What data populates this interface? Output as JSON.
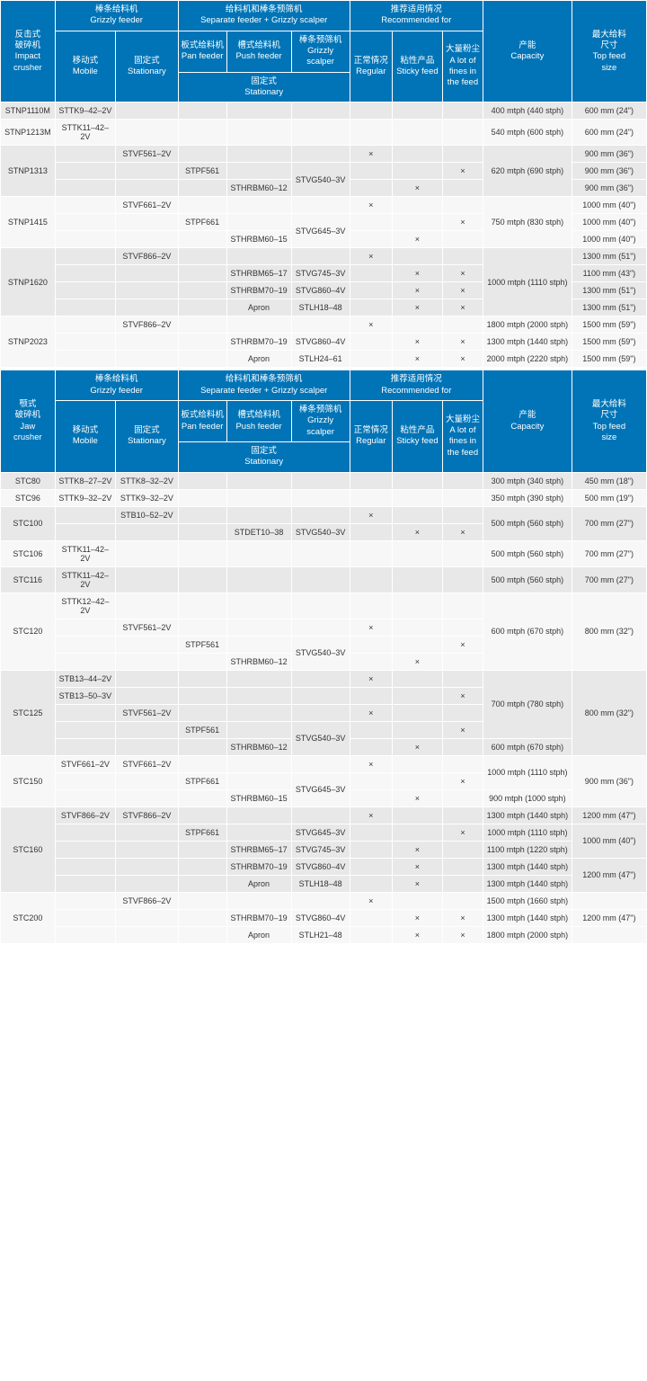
{
  "colors": {
    "header": "#0074b7",
    "alt1": "#e8e8e8",
    "alt2": "#f7f7f7"
  },
  "widths": {
    "crusher": 54,
    "mobile": 60,
    "stationary": 62,
    "pan": 48,
    "push": 64,
    "scalper": 58,
    "regular": 42,
    "sticky": 50,
    "fines": 40,
    "capacity": 88,
    "feedsize": 74
  },
  "x": "×",
  "header1": {
    "crusher": "反击式\n破碎机\nImpact\ncrusher",
    "grizzly": "棒条给料机\nGrizzly feeder",
    "separate": "给料机和棒条预筛机\nSeparate feeder + Grizzly scalper",
    "recommended": "推荐适用情况\nRecommended for",
    "mobile": "移动式\nMobile",
    "stationary": "固定式\nStationary",
    "pan": "板式给料机\nPan feeder",
    "push": "槽式给料机\nPush feeder",
    "scalper": "棒条预筛机\nGrizzly scalper",
    "stationary2": "固定式\nStationary",
    "regular": "正常情况\nRegular",
    "sticky": "粘性产品\nSticky feed",
    "fines": "大量粉尘\nA lot of fines in the feed",
    "capacity": "产能\nCapacity",
    "feedsize": "最大给料\n尺寸\nTop feed\nsize"
  },
  "header2": {
    "crusher": "颚式\n破碎机\nJaw\ncrusher",
    "feedsize": "最大给料\n尺寸\nTop feed\nsize"
  },
  "table1": [
    {
      "crusher": "STNP1110M",
      "rows": [
        {
          "mob": "STTK9–42–2V",
          "cap": "400 mtph (440 stph)",
          "fs": "600 mm (24\")"
        }
      ],
      "bg": 0
    },
    {
      "crusher": "STNP1213M",
      "rows": [
        {
          "mob": "STTK11–42–2V",
          "cap": "540 mtph (600 stph)",
          "fs": "600 mm (24\")"
        }
      ],
      "bg": 1
    },
    {
      "crusher": "STNP1313",
      "rows": [
        {
          "sta": "STVF561–2V",
          "reg": "×",
          "fs": "900 mm (36\")"
        },
        {
          "pan": "STPF561",
          "scalprs": 2,
          "scalp": "STVG540–3V",
          "fin": "×",
          "fs": "900 mm (36\")"
        },
        {
          "push": "STHRBM60–12",
          "stk": "×",
          "fs": "900 mm (36\")"
        }
      ],
      "caprs": 3,
      "cap": "620 mtph (690 stph)",
      "bg": 0
    },
    {
      "crusher": "STNP1415",
      "rows": [
        {
          "sta": "STVF661–2V",
          "reg": "×",
          "fs": "1000 mm (40\")"
        },
        {
          "pan": "STPF661",
          "scalprs": 2,
          "scalp": "STVG645–3V",
          "fin": "×",
          "fs": "1000 mm (40\")"
        },
        {
          "push": "STHRBM60–15",
          "stk": "×",
          "fs": "1000 mm (40\")"
        }
      ],
      "caprs": 3,
      "cap": "750 mtph (830 stph)",
      "bg": 1
    },
    {
      "crusher": "STNP1620",
      "rows": [
        {
          "sta": "STVF866–2V",
          "reg": "×",
          "fs": "1300 mm (51\")"
        },
        {
          "push": "STHRBM65–17",
          "scalp": "STVG745–3V",
          "stk": "×",
          "fin": "×",
          "fs": "1100 mm (43\")"
        },
        {
          "push": "STHRBM70–19",
          "scalp": "STVG860–4V",
          "stk": "×",
          "fin": "×",
          "fs": "1300 mm (51\")"
        },
        {
          "push": "Apron",
          "scalp": "STLH18–48",
          "stk": "×",
          "fin": "×",
          "fs": "1300 mm (51\")"
        }
      ],
      "caprs": 4,
      "cap": "1000 mtph (1110 stph)",
      "bg": 0
    },
    {
      "crusher": "STNP2023",
      "rows": [
        {
          "sta": "STVF866–2V",
          "reg": "×",
          "cap": "1800 mtph (2000 stph)",
          "fs": "1500 mm (59\")"
        },
        {
          "push": "STHRBM70–19",
          "scalp": "STVG860–4V",
          "stk": "×",
          "fin": "×",
          "cap": "1300 mtph (1440 stph)",
          "fs": "1500 mm (59\")"
        },
        {
          "push": "Apron",
          "scalp": "STLH24–61",
          "stk": "×",
          "fin": "×",
          "cap": "2000 mtph (2220 stph)",
          "fs": "1500 mm (59\")"
        }
      ],
      "bg": 1
    }
  ],
  "table2": [
    {
      "crusher": "STC80",
      "rows": [
        {
          "mob": "STTK8–27–2V",
          "sta": "STTK8–32–2V",
          "cap": "300 mtph (340 stph)",
          "fs": "450 mm (18\")"
        }
      ],
      "bg": 0
    },
    {
      "crusher": "STC96",
      "rows": [
        {
          "mob": "STTK9–32–2V",
          "sta": "STTK9–32–2V",
          "cap": "350 mtph (390 stph)",
          "fs": "500 mm (19\")"
        }
      ],
      "bg": 1
    },
    {
      "crusher": "STC100",
      "rows": [
        {
          "sta": "STB10–52–2V",
          "reg": "×",
          "fs": "700 mm (27\")"
        },
        {
          "push": "STDET10–38",
          "scalp": "STVG540–3V",
          "stk": "×",
          "fin": "×"
        }
      ],
      "caprs": 2,
      "cap": "500 mtph (560 stph)",
      "fsrs": 2,
      "fsv": "700 mm (27\")",
      "bg": 0,
      "fs1": true
    },
    {
      "crusher": "STC106",
      "rows": [
        {
          "mob": "STTK11–42–2V",
          "cap": "500 mtph (560 stph)",
          "fs": "700 mm (27\")"
        }
      ],
      "bg": 1
    },
    {
      "crusher": "STC116",
      "rows": [
        {
          "mob": "STTK11–42–2V",
          "cap": "500 mtph (560 stph)",
          "fs": "700 mm (27\")"
        }
      ],
      "bg": 0
    },
    {
      "crusher": "STC120",
      "rows": [
        {
          "mob": "STTK12–42–2V"
        },
        {
          "sta": "STVF561–2V",
          "reg": "×"
        },
        {
          "pan": "STPF561",
          "scalprs": 2,
          "scalp": "STVG540–3V",
          "fin": "×"
        },
        {
          "push": "STHRBM60–12",
          "stk": "×"
        }
      ],
      "caprs": 4,
      "cap": "600 mtph (670 stph)",
      "fsrs": 4,
      "fsv": "800 mm (32\")",
      "bg": 1
    },
    {
      "crusher": "STC125",
      "rows": [
        {
          "mob": "STB13–44–2V",
          "reg": "×"
        },
        {
          "mob": "STB13–50–3V",
          "fin": "×"
        },
        {
          "sta": "STVF561–2V",
          "reg": "×"
        },
        {
          "pan": "STPF561",
          "scalprs": 2,
          "scalp": "STVG540–3V",
          "fin": "×"
        },
        {
          "push": "STHRBM60–12",
          "stk": "×",
          "cap": "600 mtph (670 stph)"
        }
      ],
      "caprs": 4,
      "cap": "700 mtph (780 stph)",
      "fsrs": 5,
      "fsv": "800 mm (32\")",
      "bg": 0
    },
    {
      "crusher": "STC150",
      "rows": [
        {
          "mob": "STVF661–2V",
          "sta": "STVF661–2V",
          "reg": "×"
        },
        {
          "pan": "STPF661",
          "scalprs": 2,
          "scalp": "STVG645–3V",
          "fin": "×"
        },
        {
          "push": "STHRBM60–15",
          "stk": "×",
          "cap": "900 mtph (1000 stph)"
        }
      ],
      "caprs": 2,
      "cap": "1000 mtph (1110 stph)",
      "fsrs": 3,
      "fsv": "900 mm (36\")",
      "bg": 1
    },
    {
      "crusher": "STC160",
      "rows": [
        {
          "mob": "STVF866–2V",
          "sta": "STVF866–2V",
          "reg": "×",
          "cap": "1300 mtph (1440 stph)",
          "fs": "1200 mm (47\")"
        },
        {
          "pan": "STPF661",
          "scalp": "STVG645–3V",
          "fin": "×",
          "cap": "1000 mtph (1110 stph)",
          "fsrs": 2,
          "fs": "1000 mm (40\")"
        },
        {
          "push": "STHRBM65–17",
          "scalp": "STVG745–3V",
          "stk": "×",
          "cap": "1100 mtph (1220 stph)"
        },
        {
          "push": "STHRBM70–19",
          "scalp": "STVG860–4V",
          "stk": "×",
          "cap": "1300 mtph (1440 stph)",
          "fsrs": 2,
          "fs": "1200 mm (47\")"
        },
        {
          "push": "Apron",
          "scalp": "STLH18–48",
          "stk": "×",
          "cap": "1300 mtph (1440 stph)"
        }
      ],
      "bg": 0
    },
    {
      "crusher": "STC200",
      "rows": [
        {
          "sta": "STVF866–2V",
          "reg": "×",
          "cap": "1500 mtph (1660 stph)"
        },
        {
          "push": "STHRBM70–19",
          "scalp": "STVG860–4V",
          "stk": "×",
          "fin": "×",
          "cap": "1300 mtph (1440 stph)",
          "fs": "1200 mm (47\")"
        },
        {
          "push": "Apron",
          "scalp": "STLH21–48",
          "stk": "×",
          "fin": "×",
          "cap": "1800 mtph (2000 stph)"
        }
      ],
      "bg": 1
    }
  ]
}
